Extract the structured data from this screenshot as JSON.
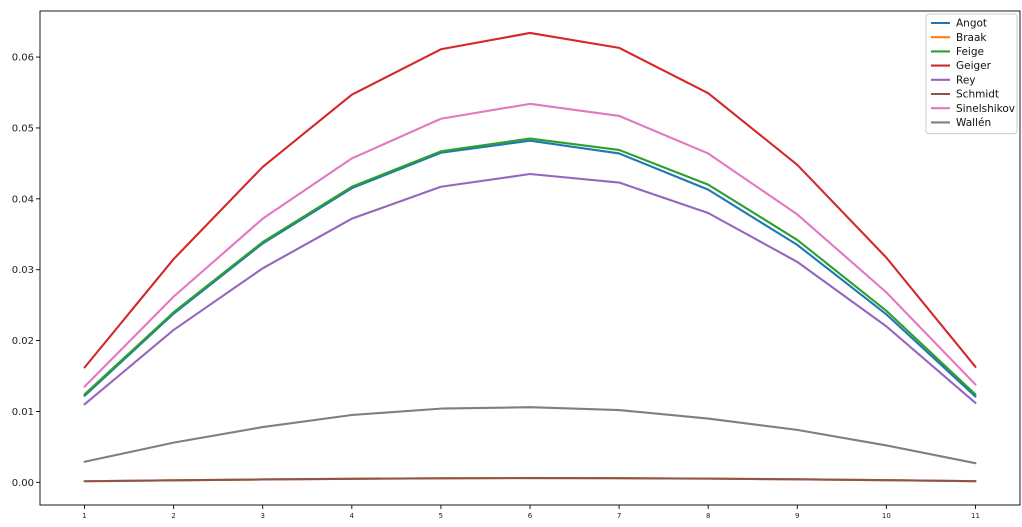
{
  "chart_data": {
    "type": "line",
    "title": "",
    "xlabel": "",
    "ylabel": "",
    "x": [
      1,
      2,
      3,
      4,
      5,
      6,
      7,
      8,
      9,
      10,
      11
    ],
    "xlim": [
      0.5,
      11.5
    ],
    "ylim": [
      -0.0032,
      0.0665
    ],
    "yticks": [
      0.0,
      0.01,
      0.02,
      0.03,
      0.04,
      0.05,
      0.06
    ],
    "ytick_labels": [
      "0.00",
      "0.01",
      "0.02",
      "0.03",
      "0.04",
      "0.05",
      "0.06"
    ],
    "xtick_labels": [
      "1",
      "2",
      "3",
      "4",
      "5",
      "6",
      "7",
      "8",
      "9",
      "10",
      "11"
    ],
    "grid": false,
    "legend_position": "top-right",
    "series": [
      {
        "name": "Angot",
        "color": "#1f77b4",
        "values": [
          0.0122,
          0.0238,
          0.0337,
          0.0415,
          0.0465,
          0.0482,
          0.0464,
          0.0413,
          0.0335,
          0.0237,
          0.0121
        ]
      },
      {
        "name": "Braak",
        "color": "#ff7f0e",
        "values": [
          0.00015,
          0.00028,
          0.0004,
          0.0005,
          0.00057,
          0.0006,
          0.00058,
          0.00052,
          0.00042,
          0.0003,
          0.00016
        ]
      },
      {
        "name": "Feige",
        "color": "#2ca02c",
        "values": [
          0.0124,
          0.024,
          0.0339,
          0.0417,
          0.0467,
          0.0485,
          0.0469,
          0.042,
          0.0342,
          0.0242,
          0.0124
        ]
      },
      {
        "name": "Geiger",
        "color": "#d62728",
        "values": [
          0.0162,
          0.0315,
          0.0445,
          0.0547,
          0.0611,
          0.0634,
          0.0613,
          0.0549,
          0.0448,
          0.0317,
          0.0163
        ]
      },
      {
        "name": "Rey",
        "color": "#9467bd",
        "values": [
          0.011,
          0.0215,
          0.0302,
          0.0372,
          0.0417,
          0.0435,
          0.0423,
          0.038,
          0.0311,
          0.022,
          0.0112
        ]
      },
      {
        "name": "Schmidt",
        "color": "#8c564b",
        "values": [
          0.00015,
          0.00028,
          0.0004,
          0.0005,
          0.00057,
          0.0006,
          0.00058,
          0.00052,
          0.00042,
          0.0003,
          0.00016
        ]
      },
      {
        "name": "Sinelshikov",
        "color": "#e377c2",
        "values": [
          0.0135,
          0.0262,
          0.0372,
          0.0457,
          0.0513,
          0.0534,
          0.0517,
          0.0464,
          0.0378,
          0.0268,
          0.0138
        ]
      },
      {
        "name": "Wallén",
        "color": "#7f7f7f",
        "values": [
          0.0029,
          0.0056,
          0.0078,
          0.0095,
          0.0104,
          0.0106,
          0.0102,
          0.009,
          0.0074,
          0.0052,
          0.0027
        ]
      }
    ]
  }
}
